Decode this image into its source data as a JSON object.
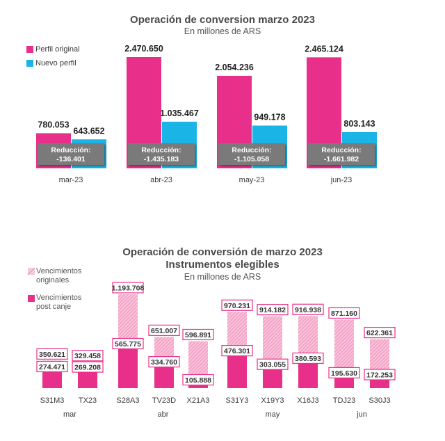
{
  "chart1": {
    "title": "Operación de conversion marzo 2023",
    "subtitle": "En millones de ARS",
    "legend": {
      "original": "Perfil original",
      "nuevo": "Nuevo perfil"
    },
    "colors": {
      "original": "#e8308a",
      "nuevo": "#1ab4e6",
      "reduction_box": "#7a7a7a"
    }
  },
  "chart2": {
    "title": "Operación de conversión de marzo 2023",
    "title2": "Instrumentos elegibles",
    "subtitle": "En millones de ARS",
    "legend": {
      "originales_line1": "Vencimientos",
      "originales_line2": "originales",
      "post_line1": "Vencimientos",
      "post_line2": "post canje"
    },
    "colors": {
      "post": "#e8308a",
      "originales": "#f4a6c8",
      "label_border": "#e8308a"
    }
  },
  "chart_data": [
    {
      "type": "bar",
      "title": "Operación de conversion marzo 2023",
      "subtitle": "En millones de ARS",
      "categories": [
        "mar-23",
        "abr-23",
        "may-23",
        "jun-23"
      ],
      "series": [
        {
          "name": "Perfil original",
          "values": [
            780.053,
            2470.65,
            2054.236,
            2465.124
          ],
          "labels": [
            "780.053",
            "2.470.650",
            "2.054.236",
            "2.465.124"
          ]
        },
        {
          "name": "Nuevo perfil",
          "values": [
            643.652,
            1035.467,
            949.178,
            803.143
          ],
          "labels": [
            "643.652",
            "1.035.467",
            "949.178",
            "803.143"
          ]
        }
      ],
      "annotations": {
        "prefix": "Reducción:",
        "values": [
          "-136.401",
          "-1.435.183",
          "-1.105.058",
          "-1.661.982"
        ]
      },
      "ylim": [
        0,
        2700
      ],
      "grid": false,
      "legend_position": "top-left"
    },
    {
      "type": "bar",
      "title": "Operación de conversión de marzo 2023",
      "subtitle": "Instrumentos elegibles",
      "note": "En millones de ARS",
      "categories": [
        "S31M3",
        "TX23",
        "S28A3",
        "TV23D",
        "X21A3",
        "S31Y3",
        "X19Y3",
        "X16J3",
        "TDJ23",
        "S30J3"
      ],
      "groups": [
        {
          "label": "mar",
          "categories": [
            "S31M3",
            "TX23"
          ]
        },
        {
          "label": "abr",
          "categories": [
            "S28A3",
            "TV23D",
            "X21A3"
          ]
        },
        {
          "label": "may",
          "categories": [
            "S31Y3",
            "X19Y3",
            "X16J3"
          ]
        },
        {
          "label": "jun",
          "categories": [
            "TDJ23",
            "S30J3"
          ]
        }
      ],
      "series": [
        {
          "name": "Vencimientos originales",
          "values": [
            350.621,
            329.458,
            1193.708,
            651.007,
            596.891,
            970.231,
            914.182,
            916.938,
            871.16,
            622.361
          ],
          "labels": [
            "350.621",
            "329.458",
            "1.193.708",
            "651.007",
            "596.891",
            "970.231",
            "914.182",
            "916.938",
            "871.160",
            "622.361"
          ]
        },
        {
          "name": "Vencimientos post canje",
          "values": [
            274.471,
            269.208,
            565.775,
            334.76,
            105.888,
            476.301,
            303.055,
            380.593,
            195.63,
            172.253
          ],
          "labels": [
            "274.471",
            "269.208",
            "565.775",
            "334.760",
            "105.888",
            "476.301",
            "303.055",
            "380.593",
            "195.630",
            "172.253"
          ]
        }
      ],
      "ylim": [
        0,
        1250
      ],
      "grid": false,
      "legend_position": "top-left"
    }
  ]
}
